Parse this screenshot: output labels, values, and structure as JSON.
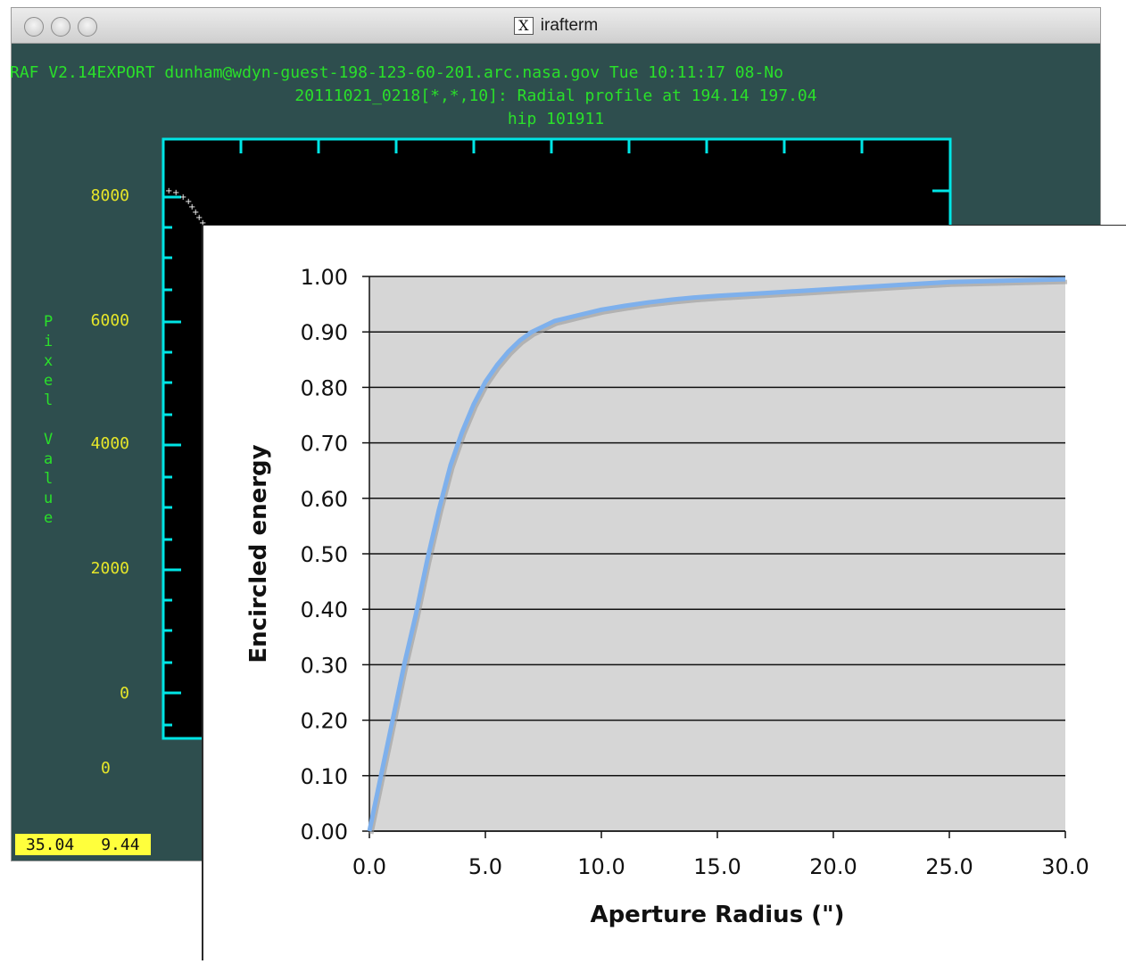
{
  "window": {
    "title": "irafterm",
    "title_icon": "X",
    "header_lines": [
      "RAF V2.14EXPORT dunham@wdyn-guest-198-123-60-201.arc.nasa.gov Tue 10:11:17 08-No",
      "20111021_0218[*,*,10]: Radial profile at 194.14 197.04",
      "hip 101911"
    ],
    "ylabel_chars": [
      "P",
      "i",
      "x",
      "e",
      "l",
      "",
      "V",
      "a",
      "l",
      "u",
      "e"
    ],
    "y_ticks": [
      "8000",
      "6000",
      "4000",
      "2000",
      "0"
    ],
    "x_tick_first": "0",
    "status": [
      "35.04",
      "9.44"
    ],
    "colors": {
      "terminal_bg": "#2e4e4e",
      "axis": "#00e5e5",
      "text_green": "#2ae02a",
      "tick_yellow": "#e6e62a"
    }
  },
  "chart_data": {
    "type": "line",
    "xlabel": "Aperture Radius (\")",
    "ylabel": "Encircled energy",
    "xlim": [
      0,
      30
    ],
    "ylim": [
      0,
      1
    ],
    "x_ticks": [
      "0.0",
      "5.0",
      "10.0",
      "15.0",
      "20.0",
      "25.0",
      "30.0"
    ],
    "y_ticks": [
      "0.00",
      "0.10",
      "0.20",
      "0.30",
      "0.40",
      "0.50",
      "0.60",
      "0.70",
      "0.80",
      "0.90",
      "1.00"
    ],
    "grid": true,
    "legend": "none",
    "series": [
      {
        "color": "#7eb0ec",
        "x": [
          0,
          0.5,
          1,
          1.5,
          2,
          2.5,
          3,
          3.5,
          4,
          4.5,
          5,
          5.5,
          6,
          6.5,
          7,
          7.5,
          8,
          9,
          10,
          11,
          12,
          13,
          14,
          15,
          17,
          19,
          21,
          23,
          25,
          27,
          30
        ],
        "y": [
          0.0,
          0.1,
          0.2,
          0.3,
          0.39,
          0.49,
          0.58,
          0.66,
          0.72,
          0.77,
          0.81,
          0.84,
          0.865,
          0.885,
          0.9,
          0.91,
          0.92,
          0.93,
          0.94,
          0.947,
          0.953,
          0.958,
          0.962,
          0.965,
          0.97,
          0.975,
          0.98,
          0.985,
          0.99,
          0.992,
          0.995
        ]
      }
    ]
  }
}
